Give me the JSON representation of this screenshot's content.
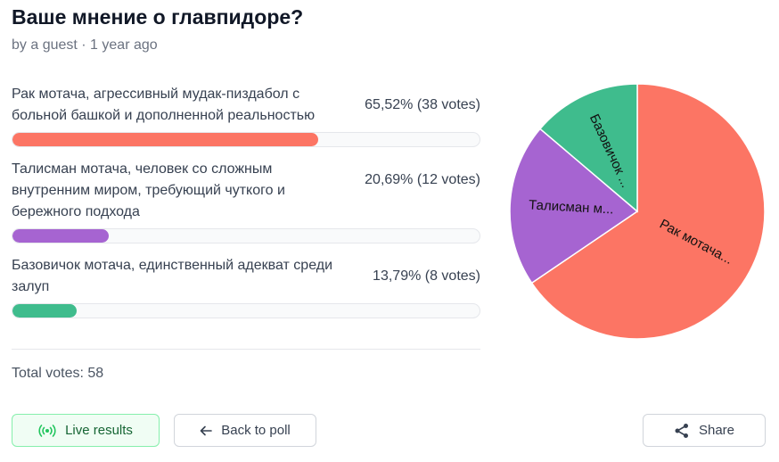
{
  "poll": {
    "title": "Ваше мнение о главпидоре?",
    "meta": "by a guest · 1 year ago",
    "total": "Total votes: 58"
  },
  "options": [
    {
      "label": "Рак мотача, агрессивный мудак-пиздабол с больной башкой и дополненной реальностью",
      "stat": "65,52% (38 votes)"
    },
    {
      "label": "Талисман мотача, человек со сложным внутренним миром, требующий чуткого и бережного подхода",
      "stat": "20,69% (12 votes)"
    },
    {
      "label": "Базовичок мотача, единственный адекват среди залуп",
      "stat": "13,79% (8 votes)"
    }
  ],
  "buttons": {
    "live": "Live results",
    "back": "Back to poll",
    "share": "Share"
  },
  "icons": {
    "live": "broadcast-icon",
    "back": "arrow-left-icon",
    "share": "share-icon"
  },
  "colors": {
    "option1": "#fc7564",
    "option2": "#a664d1",
    "option3": "#3fbc8d",
    "live_border": "#86efac"
  },
  "chart_data": {
    "type": "pie",
    "categories": [
      "Рак мотача...",
      "Талисман м...",
      "Базовичок ..."
    ],
    "values": [
      38,
      12,
      8
    ],
    "percentages": [
      65.52,
      20.69,
      13.79
    ],
    "colors": [
      "#fc7564",
      "#a664d1",
      "#3fbc8d"
    ]
  }
}
